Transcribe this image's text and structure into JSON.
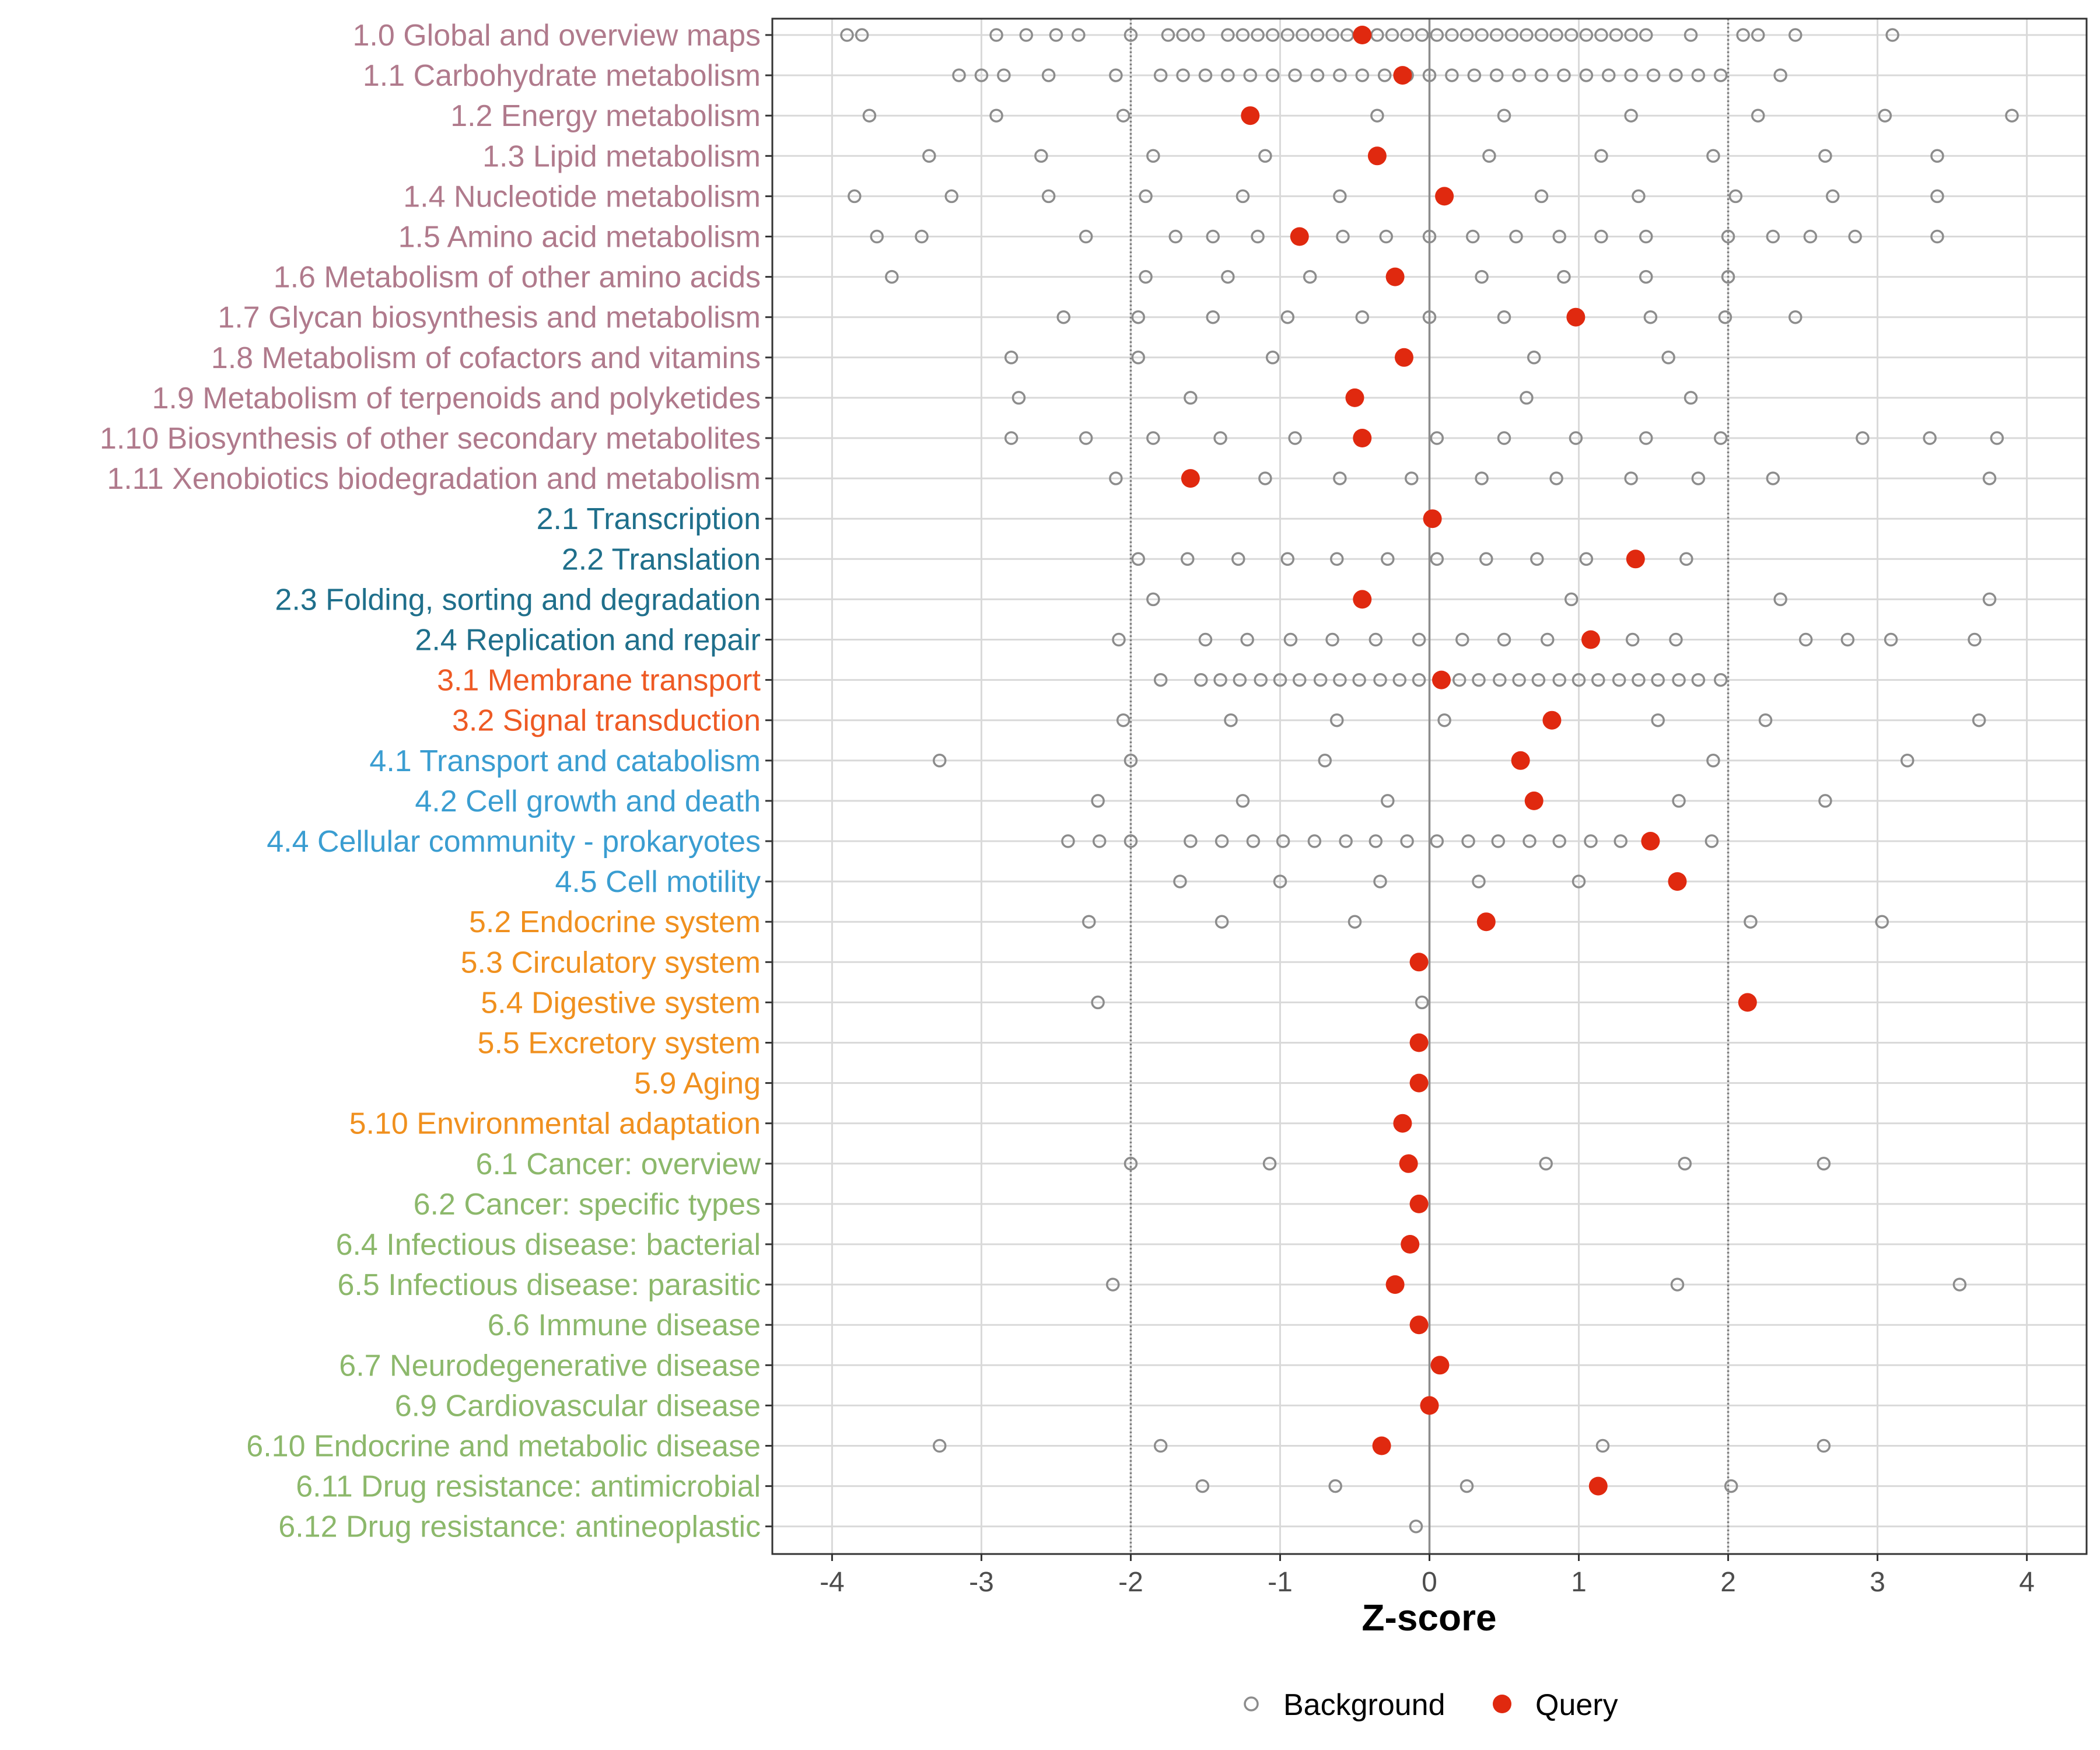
{
  "colors": {
    "bg_point_stroke": "#8c8c8c",
    "query_point": "#e0290f",
    "grid": "#d9d9d9",
    "zero_line": "#8c8c8c",
    "sig_line": "#7f7f7f",
    "group": {
      "1": "#b07a8c",
      "2": "#1f6f8b",
      "3": "#ee5a24",
      "4": "#3a9dd1",
      "5": "#f0901e",
      "6": "#8cb86b"
    }
  },
  "chart_data": {
    "type": "scatter",
    "xlabel": "Z-score",
    "ylabel": "",
    "xlim": [
      -4.4,
      4.4
    ],
    "xticks": [
      -4,
      -3,
      -2,
      -1,
      0,
      1,
      2,
      3,
      4
    ],
    "xtick_labels": [
      "-4",
      "-3",
      "-2",
      "-1",
      "0",
      "1",
      "2",
      "3",
      "4"
    ],
    "significance_lines": [
      -2,
      2
    ],
    "grid": true,
    "legend": {
      "position": "bottom",
      "items": [
        {
          "name": "Background",
          "key": "background"
        },
        {
          "name": "Query",
          "key": "query"
        }
      ]
    },
    "categories": [
      {
        "label": "1.0 Global and overview maps",
        "group": "1",
        "query": -0.45,
        "background": [
          -3.9,
          -3.8,
          -2.9,
          -2.7,
          -2.5,
          -2.35,
          -2.0,
          -1.75,
          -1.65,
          -1.55,
          -1.35,
          -1.25,
          -1.15,
          -1.05,
          -0.95,
          -0.85,
          -0.75,
          -0.65,
          -0.55,
          -0.45,
          -0.35,
          -0.25,
          -0.15,
          -0.05,
          0.05,
          0.15,
          0.25,
          0.35,
          0.45,
          0.55,
          0.65,
          0.75,
          0.85,
          0.95,
          1.05,
          1.15,
          1.25,
          1.35,
          1.45,
          1.75,
          2.1,
          2.2,
          2.45,
          3.1
        ]
      },
      {
        "label": "1.1 Carbohydrate metabolism",
        "group": "1",
        "query": -0.18,
        "background": [
          -3.15,
          -3.0,
          -2.85,
          -2.55,
          -2.1,
          -1.8,
          -1.65,
          -1.5,
          -1.35,
          -1.2,
          -1.05,
          -0.9,
          -0.75,
          -0.6,
          -0.45,
          -0.3,
          -0.15,
          0.0,
          0.15,
          0.3,
          0.45,
          0.6,
          0.75,
          0.9,
          1.05,
          1.2,
          1.35,
          1.5,
          1.65,
          1.8,
          1.95,
          2.35
        ]
      },
      {
        "label": "1.2 Energy metabolism",
        "group": "1",
        "query": -1.2,
        "background": [
          -3.75,
          -2.9,
          -2.05,
          -0.35,
          0.5,
          1.35,
          2.2,
          3.05,
          3.9
        ]
      },
      {
        "label": "1.3 Lipid metabolism",
        "group": "1",
        "query": -0.35,
        "background": [
          -3.35,
          -2.6,
          -1.85,
          -1.1,
          0.4,
          1.15,
          1.9,
          2.65,
          3.4
        ]
      },
      {
        "label": "1.4 Nucleotide metabolism",
        "group": "1",
        "query": 0.1,
        "background": [
          -3.85,
          -3.2,
          -2.55,
          -1.9,
          -1.25,
          -0.6,
          0.75,
          1.4,
          2.05,
          2.7,
          3.4
        ]
      },
      {
        "label": "1.5 Amino acid metabolism",
        "group": "1",
        "query": -0.87,
        "background": [
          -3.7,
          -3.4,
          -2.3,
          -1.7,
          -1.45,
          -1.15,
          -0.58,
          -0.29,
          0.0,
          0.29,
          0.58,
          0.87,
          1.15,
          1.45,
          2.0,
          2.3,
          2.55,
          2.85,
          3.4
        ]
      },
      {
        "label": "1.6 Metabolism of other amino acids",
        "group": "1",
        "query": -0.23,
        "background": [
          -3.6,
          -1.9,
          -1.35,
          -0.8,
          0.35,
          0.9,
          1.45,
          2.0
        ]
      },
      {
        "label": "1.7 Glycan biosynthesis and metabolism",
        "group": "1",
        "query": 0.98,
        "background": [
          -2.45,
          -1.95,
          -1.45,
          -0.95,
          -0.45,
          0.0,
          0.5,
          1.48,
          1.98,
          2.45
        ]
      },
      {
        "label": "1.8 Metabolism of cofactors and vitamins",
        "group": "1",
        "query": -0.17,
        "background": [
          -2.8,
          -1.95,
          -1.05,
          0.7,
          1.6
        ]
      },
      {
        "label": "1.9 Metabolism of terpenoids and polyketides",
        "group": "1",
        "query": -0.5,
        "background": [
          -2.75,
          -1.6,
          0.65,
          1.75
        ]
      },
      {
        "label": "1.10 Biosynthesis of other secondary metabolites",
        "group": "1",
        "query": -0.45,
        "background": [
          -2.8,
          -2.3,
          -1.85,
          -1.4,
          -0.9,
          0.05,
          0.5,
          0.98,
          1.45,
          1.95,
          2.9,
          3.35,
          3.8
        ]
      },
      {
        "label": "1.11 Xenobiotics biodegradation and metabolism",
        "group": "1",
        "query": -1.6,
        "background": [
          -2.1,
          -1.1,
          -0.6,
          -0.12,
          0.35,
          0.85,
          1.35,
          1.8,
          2.3,
          3.75
        ]
      },
      {
        "label": "2.1 Transcription",
        "group": "2",
        "query": 0.02,
        "background": []
      },
      {
        "label": "2.2 Translation",
        "group": "2",
        "query": 1.38,
        "background": [
          -1.95,
          -1.62,
          -1.28,
          -0.95,
          -0.62,
          -0.28,
          0.05,
          0.38,
          0.72,
          1.05,
          1.72
        ]
      },
      {
        "label": "2.3 Folding, sorting and degradation",
        "group": "2",
        "query": -0.45,
        "background": [
          -1.85,
          0.95,
          2.35,
          3.75
        ]
      },
      {
        "label": "2.4 Replication and repair",
        "group": "2",
        "query": 1.08,
        "background": [
          -2.08,
          -1.5,
          -1.22,
          -0.93,
          -0.65,
          -0.36,
          -0.07,
          0.22,
          0.5,
          0.79,
          1.36,
          1.65,
          2.52,
          2.8,
          3.09,
          3.65
        ]
      },
      {
        "label": "3.1 Membrane transport",
        "group": "3",
        "query": 0.08,
        "background": [
          -1.8,
          -1.53,
          -1.4,
          -1.27,
          -1.13,
          -1.0,
          -0.87,
          -0.73,
          -0.6,
          -0.47,
          -0.33,
          -0.2,
          -0.07,
          0.2,
          0.33,
          0.47,
          0.6,
          0.73,
          0.87,
          1.0,
          1.13,
          1.27,
          1.4,
          1.53,
          1.67,
          1.8,
          1.95
        ]
      },
      {
        "label": "3.2 Signal transduction",
        "group": "3",
        "query": 0.82,
        "background": [
          -2.05,
          -1.33,
          -0.62,
          0.1,
          1.53,
          2.25,
          3.68
        ]
      },
      {
        "label": "4.1 Transport and catabolism",
        "group": "4",
        "query": 0.61,
        "background": [
          -3.28,
          -2.0,
          -0.7,
          1.9,
          3.2
        ]
      },
      {
        "label": "4.2 Cell growth and death",
        "group": "4",
        "query": 0.7,
        "background": [
          -2.22,
          -1.25,
          -0.28,
          1.67,
          2.65
        ]
      },
      {
        "label": "4.4 Cellular community - prokaryotes",
        "group": "4",
        "query": 1.48,
        "background": [
          -2.42,
          -2.21,
          -2.0,
          -1.6,
          -1.39,
          -1.18,
          -0.98,
          -0.77,
          -0.56,
          -0.36,
          -0.15,
          0.05,
          0.26,
          0.46,
          0.67,
          0.87,
          1.08,
          1.28,
          1.89
        ]
      },
      {
        "label": "4.5 Cell motility",
        "group": "4",
        "query": 1.66,
        "background": [
          -1.67,
          -1.0,
          -0.33,
          0.33,
          1.0
        ]
      },
      {
        "label": "5.2 Endocrine system",
        "group": "5",
        "query": 0.38,
        "background": [
          -2.28,
          -1.39,
          -0.5,
          2.15,
          3.03
        ]
      },
      {
        "label": "5.3 Circulatory system",
        "group": "5",
        "query": -0.07,
        "background": []
      },
      {
        "label": "5.4 Digestive system",
        "group": "5",
        "query": 2.13,
        "background": [
          -2.22,
          -0.05
        ]
      },
      {
        "label": "5.5 Excretory system",
        "group": "5",
        "query": -0.07,
        "background": []
      },
      {
        "label": "5.9 Aging",
        "group": "5",
        "query": -0.07,
        "background": []
      },
      {
        "label": "5.10 Environmental adaptation",
        "group": "5",
        "query": -0.18,
        "background": []
      },
      {
        "label": "6.1 Cancer: overview",
        "group": "6",
        "query": -0.14,
        "background": [
          -2.0,
          -1.07,
          0.78,
          1.71,
          2.64
        ]
      },
      {
        "label": "6.2 Cancer: specific types",
        "group": "6",
        "query": -0.07,
        "background": []
      },
      {
        "label": "6.4 Infectious disease: bacterial",
        "group": "6",
        "query": -0.13,
        "background": []
      },
      {
        "label": "6.5 Infectious disease: parasitic",
        "group": "6",
        "query": -0.23,
        "background": [
          -2.12,
          1.66,
          3.55
        ]
      },
      {
        "label": "6.6 Immune disease",
        "group": "6",
        "query": -0.07,
        "background": []
      },
      {
        "label": "6.7 Neurodegenerative disease",
        "group": "6",
        "query": 0.07,
        "background": []
      },
      {
        "label": "6.9 Cardiovascular disease",
        "group": "6",
        "query": 0.0,
        "background": []
      },
      {
        "label": "6.10 Endocrine and metabolic disease",
        "group": "6",
        "query": -0.32,
        "background": [
          -3.28,
          -1.8,
          1.16,
          2.64
        ]
      },
      {
        "label": "6.11 Drug resistance: antimicrobial",
        "group": "6",
        "query": 1.13,
        "background": [
          -1.52,
          -0.63,
          0.25,
          2.02
        ]
      },
      {
        "label": "6.12 Drug resistance: antineoplastic",
        "group": "6",
        "query": null,
        "background": [
          -0.09
        ]
      }
    ]
  }
}
